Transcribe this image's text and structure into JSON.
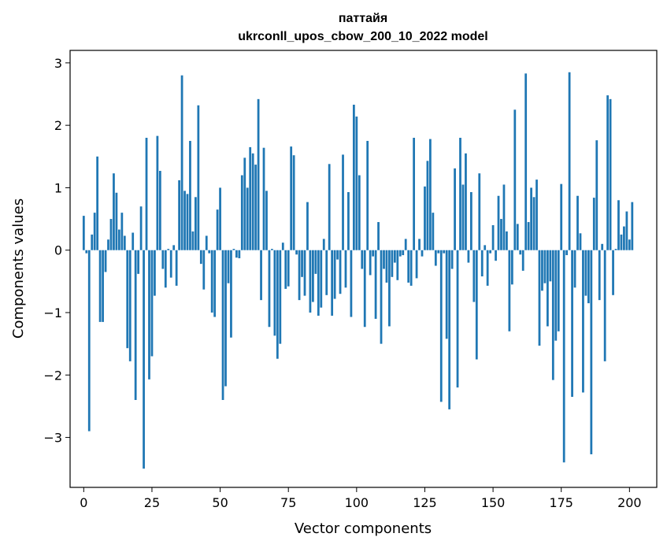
{
  "chart_data": {
    "type": "bar",
    "title": "паттайя",
    "subtitle": "ukrconll_upos_cbow_200_10_2022 model",
    "xlabel": "Vector components",
    "ylabel": "Components values",
    "xlim": [
      -5,
      210
    ],
    "ylim": [
      -3.8,
      3.2
    ],
    "xticks": [
      0,
      25,
      50,
      75,
      100,
      125,
      150,
      175,
      200
    ],
    "xtick_labels": [
      "0",
      "25",
      "50",
      "75",
      "100",
      "125",
      "150",
      "175",
      "200"
    ],
    "yticks": [
      3,
      2,
      1,
      0,
      -1,
      -2,
      -3
    ],
    "ytick_labels": [
      "3",
      "2",
      "1",
      "0",
      "−1",
      "−2",
      "−3"
    ],
    "bar_color": "#1f77b4",
    "values": [
      0.55,
      -0.05,
      -2.9,
      0.25,
      0.6,
      1.5,
      -1.15,
      -1.15,
      -0.35,
      0.17,
      0.5,
      1.23,
      0.92,
      0.33,
      0.6,
      0.23,
      -1.57,
      -1.78,
      0.28,
      -2.4,
      -0.38,
      0.7,
      -3.5,
      1.8,
      -2.07,
      -1.7,
      -0.73,
      1.83,
      1.27,
      -0.3,
      -0.6,
      0.02,
      -0.44,
      0.08,
      -0.57,
      1.12,
      2.8,
      0.95,
      0.9,
      1.75,
      0.3,
      0.85,
      2.32,
      -0.22,
      -0.63,
      0.23,
      -0.05,
      -1.0,
      -1.07,
      0.65,
      1.0,
      -2.4,
      -2.18,
      -0.53,
      -1.4,
      0.02,
      -0.12,
      -0.13,
      1.2,
      1.48,
      1.0,
      1.65,
      1.55,
      1.37,
      2.42,
      -0.8,
      1.64,
      0.95,
      -1.23,
      0.02,
      -1.37,
      -1.74,
      -1.5,
      0.12,
      -0.62,
      -0.58,
      1.66,
      1.52,
      -0.07,
      -0.8,
      -0.43,
      -0.73,
      0.77,
      -1.0,
      -0.83,
      -0.38,
      -1.05,
      -0.92,
      0.18,
      -0.72,
      1.38,
      -1.05,
      -0.78,
      -0.15,
      -0.7,
      1.53,
      -0.6,
      0.93,
      -1.07,
      2.33,
      2.14,
      1.2,
      -0.3,
      -1.23,
      1.75,
      -0.4,
      -0.1,
      -1.1,
      0.45,
      -1.5,
      -0.3,
      -0.52,
      -1.22,
      -0.43,
      -0.2,
      -0.48,
      -0.1,
      -0.08,
      0.18,
      -0.52,
      -0.57,
      1.8,
      -0.45,
      0.18,
      -0.1,
      1.02,
      1.43,
      1.78,
      0.6,
      -0.25,
      -0.05,
      -2.43,
      -0.05,
      -1.42,
      -2.55,
      -0.3,
      1.31,
      -2.2,
      1.8,
      1.05,
      1.55,
      -0.2,
      0.93,
      -0.83,
      -1.75,
      1.23,
      -0.42,
      0.08,
      -0.57,
      -0.05,
      0.4,
      -0.17,
      0.87,
      0.5,
      1.05,
      0.3,
      -1.3,
      -0.55,
      2.25,
      0.42,
      -0.07,
      -0.33,
      2.83,
      0.45,
      1.0,
      0.85,
      1.13,
      -1.53,
      -0.65,
      -0.53,
      -1.22,
      -0.5,
      -2.08,
      -1.45,
      -1.3,
      1.06,
      -3.4,
      -0.08,
      2.85,
      -2.35,
      -0.6,
      0.87,
      0.27,
      -2.28,
      -0.73,
      -0.85,
      -3.27,
      0.84,
      1.76,
      -0.8,
      0.1,
      -1.78,
      2.48,
      2.42,
      -0.72,
      0.02,
      0.8,
      0.25,
      0.38,
      0.62,
      0.17,
      0.77
    ]
  }
}
